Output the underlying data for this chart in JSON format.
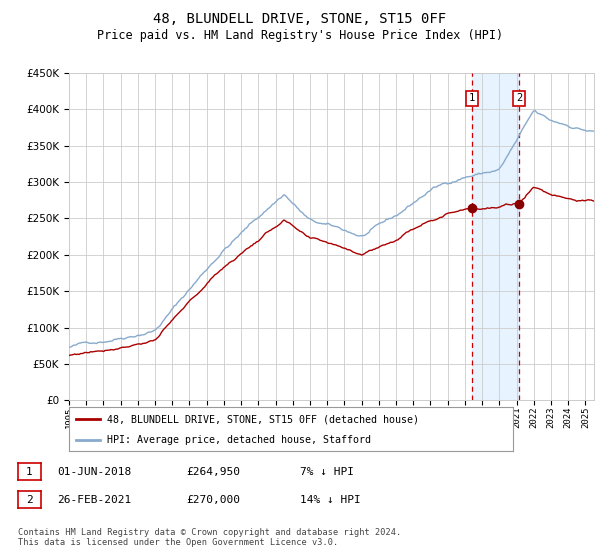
{
  "title": "48, BLUNDELL DRIVE, STONE, ST15 0FF",
  "subtitle": "Price paid vs. HM Land Registry's House Price Index (HPI)",
  "ylim": [
    0,
    450000
  ],
  "xlim_start": 1995.0,
  "xlim_end": 2025.5,
  "sale1_date": 2018.42,
  "sale1_price": 264950,
  "sale2_date": 2021.15,
  "sale2_price": 270000,
  "legend_line1": "48, BLUNDELL DRIVE, STONE, ST15 0FF (detached house)",
  "legend_line2": "HPI: Average price, detached house, Stafford",
  "footer": "Contains HM Land Registry data © Crown copyright and database right 2024.\nThis data is licensed under the Open Government Licence v3.0.",
  "line_color_property": "#aa0000",
  "line_color_hpi": "#88aacc",
  "background_color": "#ffffff",
  "grid_color": "#cccccc",
  "shade_color": "#ddeeff"
}
